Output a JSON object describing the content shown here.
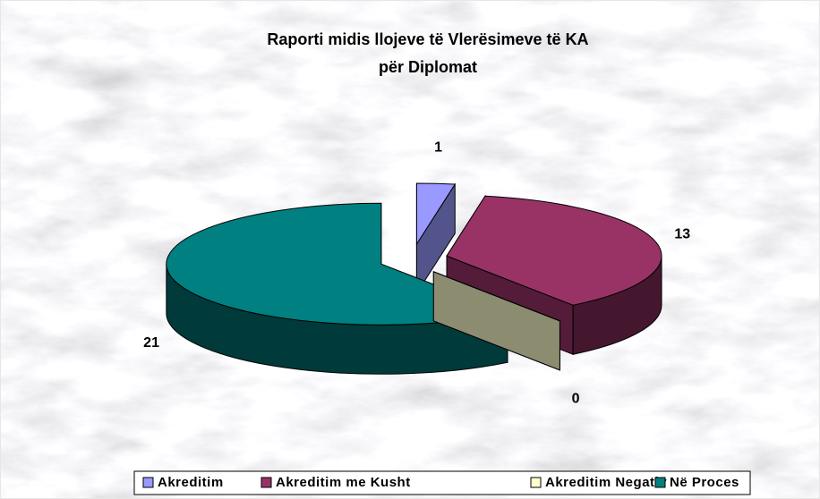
{
  "chart_data": {
    "type": "pie3d",
    "title": [
      "Raporti midis llojeve të Vlerësimeve të KA",
      "për Diplomat"
    ],
    "categories": [
      "Akreditim",
      "Akreditim me Kusht",
      "Akreditim Negativ",
      "Në Proces"
    ],
    "values": [
      1,
      13,
      0,
      21
    ],
    "colors": [
      "#9999ff",
      "#993366",
      "#ffffcc",
      "#008080"
    ],
    "legend": "bottom"
  }
}
